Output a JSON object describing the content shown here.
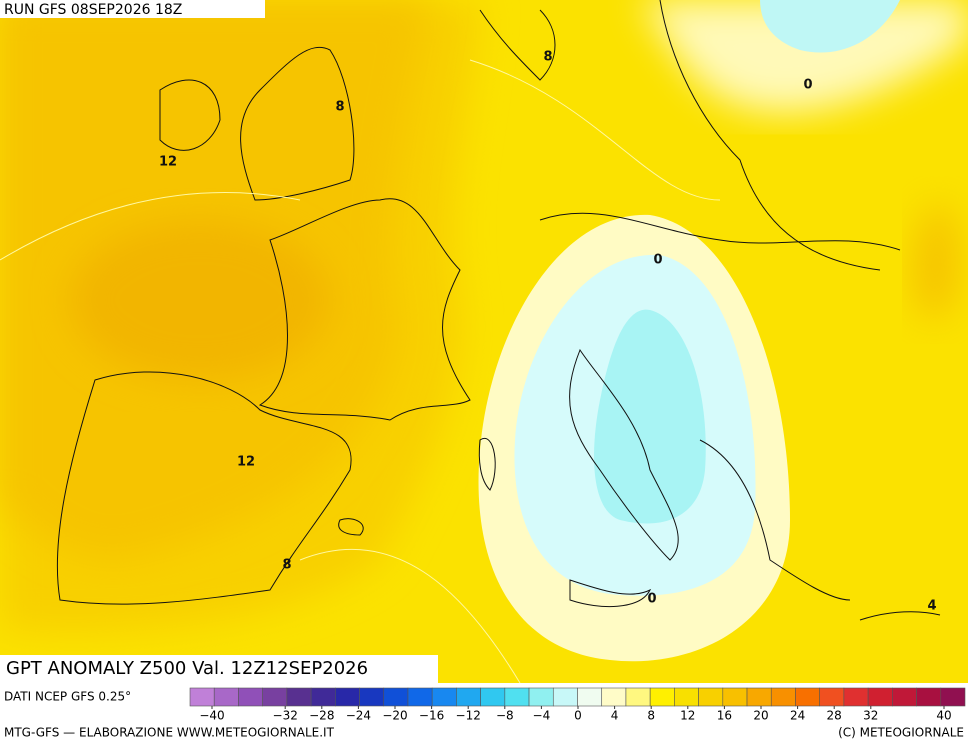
{
  "header": {
    "run": "RUN GFS 08SEP2026 18Z"
  },
  "title": "GPT ANOMALY Z500 Val. 12Z12SEP2026",
  "contour_labels": [
    8,
    8,
    12,
    12,
    8,
    0,
    0,
    0,
    4
  ],
  "source": "DATI NCEP GFS 0.25°",
  "colorbar": {
    "colors": [
      "#c080d8",
      "#a868c8",
      "#9050b8",
      "#7840a0",
      "#583090",
      "#402a98",
      "#2828a8",
      "#1838c0",
      "#1050d8",
      "#1068e8",
      "#1888f0",
      "#20a8f0",
      "#30c8f0",
      "#50e0f0",
      "#90f0f0",
      "#c8f8f8",
      "#f0fcf0",
      "#fffcc8",
      "#fff880",
      "#fff000",
      "#f8e000",
      "#f8d000",
      "#f8c000",
      "#f8a800",
      "#f89000",
      "#f87000",
      "#f05020",
      "#e03030",
      "#d02030",
      "#c01838",
      "#a81040",
      "#901050"
    ],
    "ticks": [
      {
        "value": -40,
        "label": "−40"
      },
      {
        "value": -32,
        "label": "−32"
      },
      {
        "value": -28,
        "label": "−28"
      },
      {
        "value": -24,
        "label": "−24"
      },
      {
        "value": -20,
        "label": "−20"
      },
      {
        "value": -16,
        "label": "−16"
      },
      {
        "value": -12,
        "label": "−12"
      },
      {
        "value": -8,
        "label": "−8"
      },
      {
        "value": -4,
        "label": "−4"
      },
      0,
      4,
      8,
      12,
      16,
      20,
      24,
      28,
      32,
      40
    ]
  },
  "footer": {
    "left": "MTG-GFS — ELABORAZIONE WWW.METEOGIORNALE.IT",
    "right": "(C) METEOGIORNALE"
  }
}
